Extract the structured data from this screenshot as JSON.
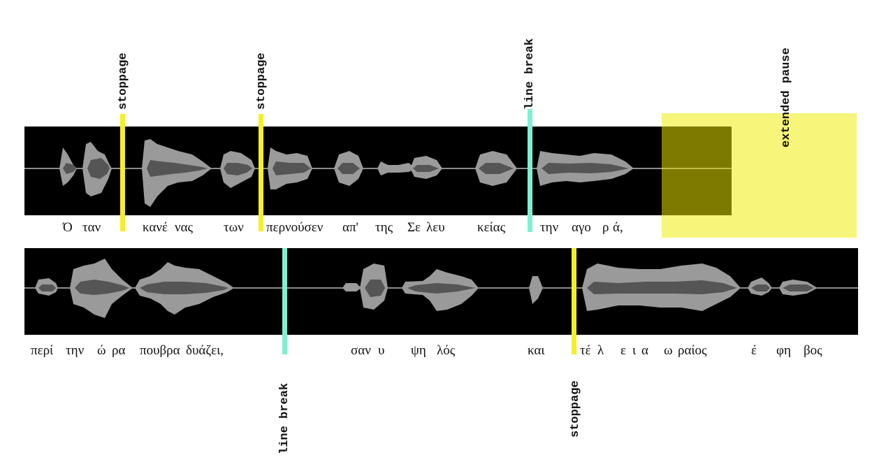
{
  "colors": {
    "background": "#ffffff",
    "panel": "#000000",
    "waveform_outer": "#9a9a9a",
    "waveform_inner": "#555555",
    "stoppage": "#f5ef2a",
    "line_break": "#7ff0d2",
    "pause_highlight": "#f7f57a",
    "pause_dark": "#7e7a00"
  },
  "labels": {
    "stoppage": "stoppage",
    "line_break": "line break",
    "extended_pause": "extended pause"
  },
  "row1": {
    "syllables": [
      "Ό",
      "ταν",
      "κανέ",
      "νας",
      "των",
      "περνούσεν",
      "απ'",
      "της",
      "Σε",
      "λευ",
      "κείας",
      "την",
      "αγο",
      "ρ",
      "ά,"
    ]
  },
  "row2": {
    "syllables": [
      "περί",
      "την",
      "ώ",
      "ρα",
      "πουβρα",
      "δυάζει,",
      "σαν",
      "υ",
      "ψη",
      "λός",
      "και",
      "τέ",
      "λ",
      "ε",
      "ι",
      "α",
      "ω",
      "ραίος",
      "έ",
      "φη",
      "βος"
    ]
  }
}
